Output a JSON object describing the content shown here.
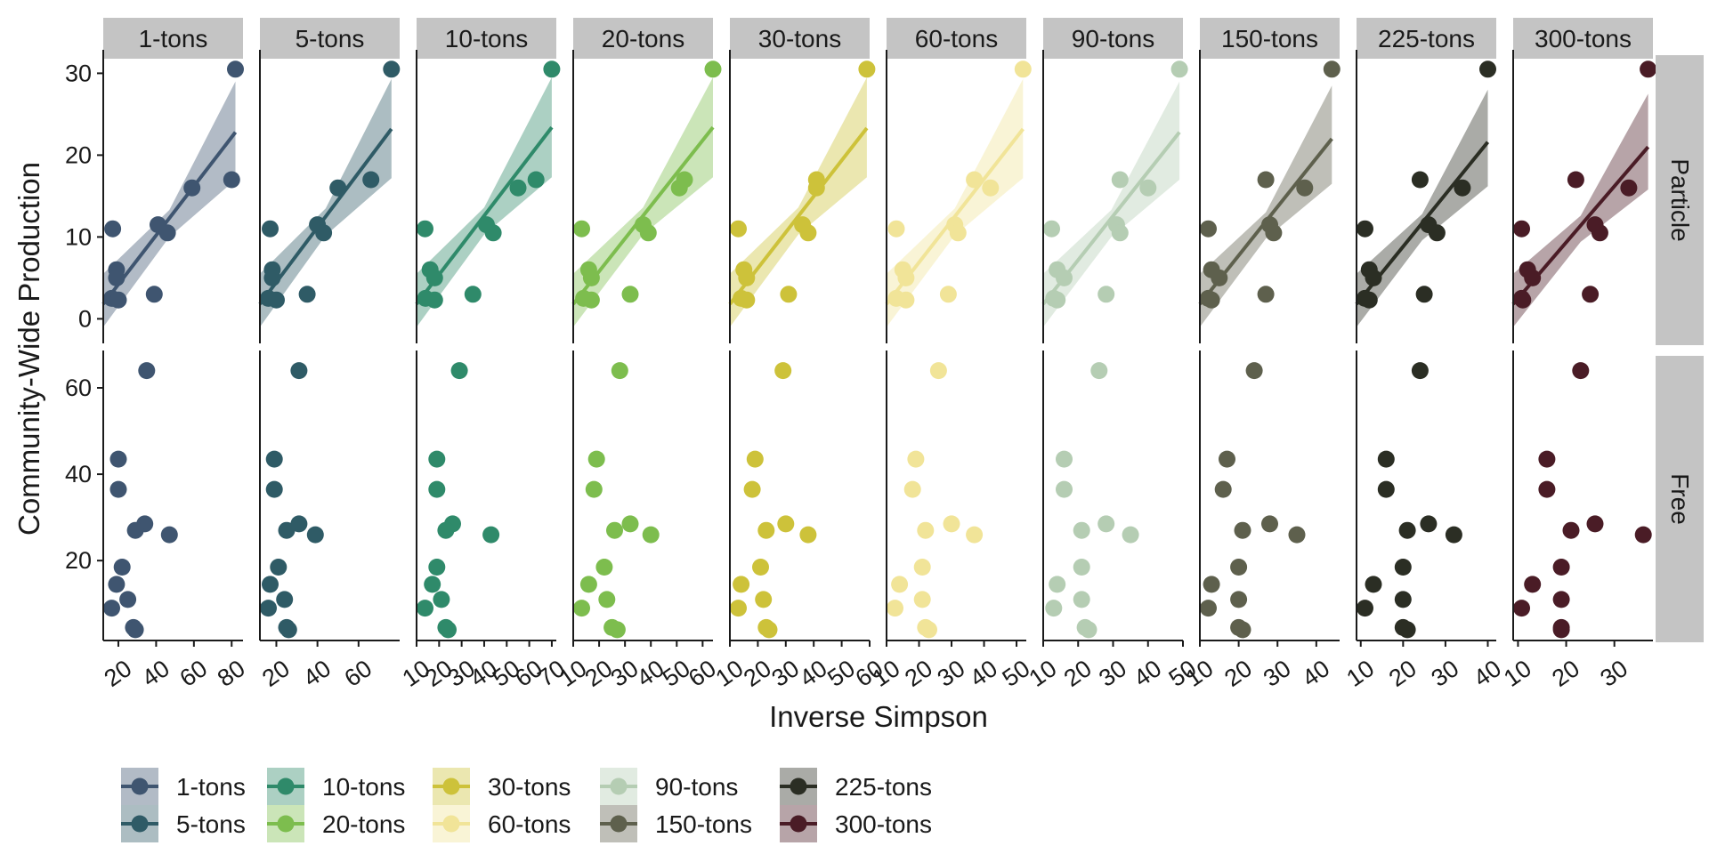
{
  "chart_data": {
    "type": "scatter",
    "facet_columns": [
      "1-tons",
      "5-tons",
      "10-tons",
      "20-tons",
      "30-tons",
      "60-tons",
      "90-tons",
      "150-tons",
      "225-tons",
      "300-tons"
    ],
    "facet_rows": [
      "Particle",
      "Free"
    ],
    "xlabel": "Inverse Simpson",
    "ylabel": "Community-Wide Production",
    "grid": false,
    "legend_placement": "bottom",
    "colors": [
      "#3f5570",
      "#2f5b66",
      "#2f8a6a",
      "#7dbd4e",
      "#cdc23a",
      "#f1e498",
      "#b5cdb3",
      "#5e604d",
      "#2b2e24",
      "#4a1c26"
    ],
    "rows": {
      "Particle": {
        "ylim": [
          -3,
          32
        ],
        "yticks": [
          0,
          10,
          20,
          30
        ],
        "y": [
          30.5,
          17,
          16,
          11.5,
          11,
          10.5,
          6,
          5,
          3,
          2.5,
          2.3
        ]
      },
      "Free": {
        "ylim": [
          1.5,
          67
        ],
        "yticks": [
          20,
          40,
          60
        ],
        "y": [
          64,
          43.5,
          36.5,
          28.5,
          27,
          26,
          18.5,
          14.5,
          11,
          9,
          4.5,
          4
        ]
      }
    },
    "panels": [
      {
        "name": "1-tons",
        "xlim": [
          12,
          86
        ],
        "xticks": [
          20,
          40,
          60,
          80
        ],
        "particle_x": [
          82,
          80,
          59,
          41,
          17,
          46,
          19,
          19,
          39,
          15,
          20
        ],
        "free_x": [
          35,
          20,
          20,
          34,
          29,
          47,
          22,
          19,
          25,
          13,
          28,
          29
        ],
        "fit": {
          "x": [
            12,
            82
          ],
          "y": [
            1.8,
            22.8
          ],
          "band_x": [
            12,
            47,
            82
          ],
          "band_lo": [
            -1.0,
            10.0,
            17.0
          ],
          "band_hi": [
            5.5,
            13.3,
            29.0
          ]
        }
      },
      {
        "name": "5-tons",
        "xlim": [
          12,
          80
        ],
        "xticks": [
          20,
          40,
          60
        ],
        "particle_x": [
          76,
          66,
          50,
          40,
          17,
          43,
          18,
          18,
          35,
          15,
          20
        ],
        "free_x": [
          31,
          19,
          19,
          31,
          25,
          39,
          21,
          17,
          24,
          12,
          25,
          26
        ],
        "fit": {
          "x": [
            12,
            76
          ],
          "y": [
            1.8,
            23.2
          ],
          "band_x": [
            12,
            44,
            76
          ],
          "band_lo": [
            -1.0,
            10.2,
            17.2
          ],
          "band_hi": [
            5.5,
            13.5,
            29.3
          ]
        }
      },
      {
        "name": "10-tons",
        "xlim": [
          10,
          72
        ],
        "xticks": [
          10,
          20,
          30,
          40,
          50,
          60,
          70
        ],
        "particle_x": [
          70,
          63,
          55,
          41,
          13,
          44,
          16,
          18,
          35,
          14,
          18
        ],
        "free_x": [
          29,
          19,
          19,
          26,
          23,
          43,
          19,
          17,
          21,
          13,
          23,
          24
        ],
        "fit": {
          "x": [
            10,
            70
          ],
          "y": [
            1.8,
            23.4
          ],
          "band_x": [
            10,
            40,
            70
          ],
          "band_lo": [
            -1.0,
            10.3,
            17.3
          ],
          "band_hi": [
            5.5,
            13.6,
            29.5
          ]
        }
      },
      {
        "name": "20-tons",
        "xlim": [
          10,
          64
        ],
        "xticks": [
          10,
          20,
          30,
          40,
          50,
          60
        ],
        "particle_x": [
          64,
          53,
          51,
          37,
          13,
          39,
          16,
          17,
          32,
          14,
          17
        ],
        "free_x": [
          28,
          19,
          18,
          32,
          26,
          40,
          22,
          16,
          23,
          12,
          25,
          27
        ],
        "fit": {
          "x": [
            10,
            64
          ],
          "y": [
            1.8,
            23.4
          ],
          "band_x": [
            10,
            37,
            64
          ],
          "band_lo": [
            -1.0,
            10.3,
            17.3
          ],
          "band_hi": [
            5.5,
            13.6,
            29.5
          ]
        }
      },
      {
        "name": "30-tons",
        "xlim": [
          10,
          60
        ],
        "xticks": [
          10,
          20,
          30,
          40,
          50,
          60
        ],
        "particle_x": [
          59,
          41,
          41,
          36,
          13,
          38,
          15,
          16,
          31,
          14,
          16
        ],
        "free_x": [
          29,
          19,
          18,
          30,
          23,
          38,
          21,
          14,
          22,
          12,
          23,
          24
        ],
        "fit": {
          "x": [
            10,
            59
          ],
          "y": [
            1.8,
            23.3
          ],
          "band_x": [
            10,
            34.5,
            59
          ],
          "band_lo": [
            -1.0,
            10.3,
            17.3
          ],
          "band_hi": [
            5.5,
            13.6,
            29.5
          ]
        }
      },
      {
        "name": "60-tons",
        "xlim": [
          10,
          53
        ],
        "xticks": [
          10,
          20,
          30,
          40,
          50
        ],
        "particle_x": [
          52,
          37,
          42,
          31,
          13,
          32,
          15,
          16,
          29,
          13,
          16
        ],
        "free_x": [
          26,
          19,
          18,
          30,
          22,
          37,
          21,
          14,
          21,
          12,
          22,
          23
        ],
        "fit": {
          "x": [
            10,
            52
          ],
          "y": [
            1.8,
            23.2
          ],
          "band_x": [
            10,
            31,
            52
          ],
          "band_lo": [
            -1.0,
            10.2,
            17.2
          ],
          "band_hi": [
            5.5,
            13.5,
            29.3
          ]
        }
      },
      {
        "name": "90-tons",
        "xlim": [
          10,
          50
        ],
        "xticks": [
          10,
          20,
          30,
          40,
          50
        ],
        "particle_x": [
          49,
          32,
          40,
          31,
          12,
          32,
          14,
          16,
          28,
          13,
          14
        ],
        "free_x": [
          26,
          16,
          16,
          28,
          21,
          35,
          21,
          14,
          21,
          13,
          22,
          23
        ],
        "fit": {
          "x": [
            10,
            49
          ],
          "y": [
            1.8,
            22.8
          ],
          "band_x": [
            10,
            29.5,
            49
          ],
          "band_lo": [
            -1.0,
            10.0,
            17.0
          ],
          "band_hi": [
            5.5,
            13.3,
            29.0
          ]
        }
      },
      {
        "name": "150-tons",
        "xlim": [
          10,
          46
        ],
        "xticks": [
          10,
          20,
          30,
          40
        ],
        "particle_x": [
          44,
          27,
          37,
          28,
          11,
          29,
          13,
          15,
          27,
          11,
          13
        ],
        "free_x": [
          24,
          17,
          16,
          28,
          21,
          35,
          20,
          13,
          20,
          11,
          20,
          21
        ],
        "fit": {
          "x": [
            10,
            44
          ],
          "y": [
            1.8,
            22.0
          ],
          "band_x": [
            10,
            27,
            44
          ],
          "band_lo": [
            -1.0,
            9.8,
            16.5
          ],
          "band_hi": [
            5.5,
            13.0,
            28.5
          ]
        }
      },
      {
        "name": "225-tons",
        "xlim": [
          9,
          42
        ],
        "xticks": [
          10,
          20,
          30,
          40
        ],
        "particle_x": [
          40,
          24,
          34,
          26,
          10,
          28,
          12,
          13,
          25,
          10,
          12
        ],
        "free_x": [
          24,
          16,
          16,
          26,
          21,
          32,
          20,
          13,
          20,
          10,
          20,
          21
        ],
        "fit": {
          "x": [
            9,
            40
          ],
          "y": [
            1.8,
            21.6
          ],
          "band_x": [
            9,
            24.5,
            40
          ],
          "band_lo": [
            -1.0,
            9.6,
            16.2
          ],
          "band_hi": [
            5.5,
            12.8,
            28.0
          ]
        }
      },
      {
        "name": "300-tons",
        "xlim": [
          9,
          38
        ],
        "xticks": [
          10,
          20,
          30
        ],
        "particle_x": [
          37,
          22,
          33,
          26,
          10,
          27,
          12,
          13,
          25,
          10,
          11
        ],
        "free_x": [
          23,
          16,
          16,
          26,
          21,
          36,
          19,
          13,
          19,
          10,
          19,
          19
        ],
        "fit": {
          "x": [
            9,
            37
          ],
          "y": [
            1.8,
            21.0
          ],
          "band_x": [
            9,
            23,
            37
          ],
          "band_lo": [
            -1.0,
            9.4,
            15.8
          ],
          "band_hi": [
            5.5,
            12.6,
            27.5
          ]
        }
      }
    ]
  }
}
